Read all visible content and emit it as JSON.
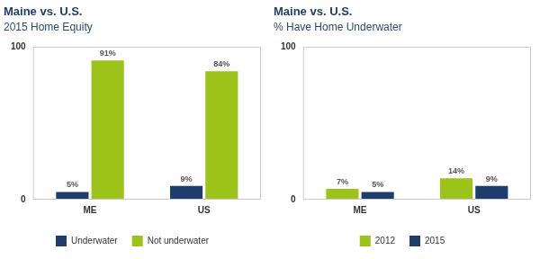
{
  "chart_data": [
    {
      "type": "bar",
      "title": "Maine vs. U.S.",
      "subtitle": "2015 Home Equity",
      "categories": [
        "ME",
        "US"
      ],
      "series": [
        {
          "name": "Underwater",
          "color": "#1f3d6b",
          "values": [
            5,
            9
          ],
          "value_labels": [
            "5%",
            "9%"
          ]
        },
        {
          "name": "Not underwater",
          "color": "#9cc31a",
          "values": [
            91,
            84
          ],
          "value_labels": [
            "91%",
            "84%"
          ]
        }
      ],
      "ylim": [
        0,
        100
      ],
      "yticks": [
        0,
        100
      ],
      "grid": false,
      "data_labels": true,
      "legend": "bottom"
    },
    {
      "type": "bar",
      "title": "Maine vs. U.S.",
      "subtitle": "% Have Home Underwater",
      "categories": [
        "ME",
        "US"
      ],
      "series": [
        {
          "name": "2012",
          "color": "#9cc31a",
          "values": [
            7,
            14
          ],
          "value_labels": [
            "7%",
            "14%"
          ]
        },
        {
          "name": "2015",
          "color": "#1f3d6b",
          "values": [
            5,
            9
          ],
          "value_labels": [
            "5%",
            "9%"
          ]
        }
      ],
      "ylim": [
        0,
        100
      ],
      "yticks": [
        0,
        100
      ],
      "grid": false,
      "data_labels": true,
      "legend": "bottom"
    }
  ]
}
